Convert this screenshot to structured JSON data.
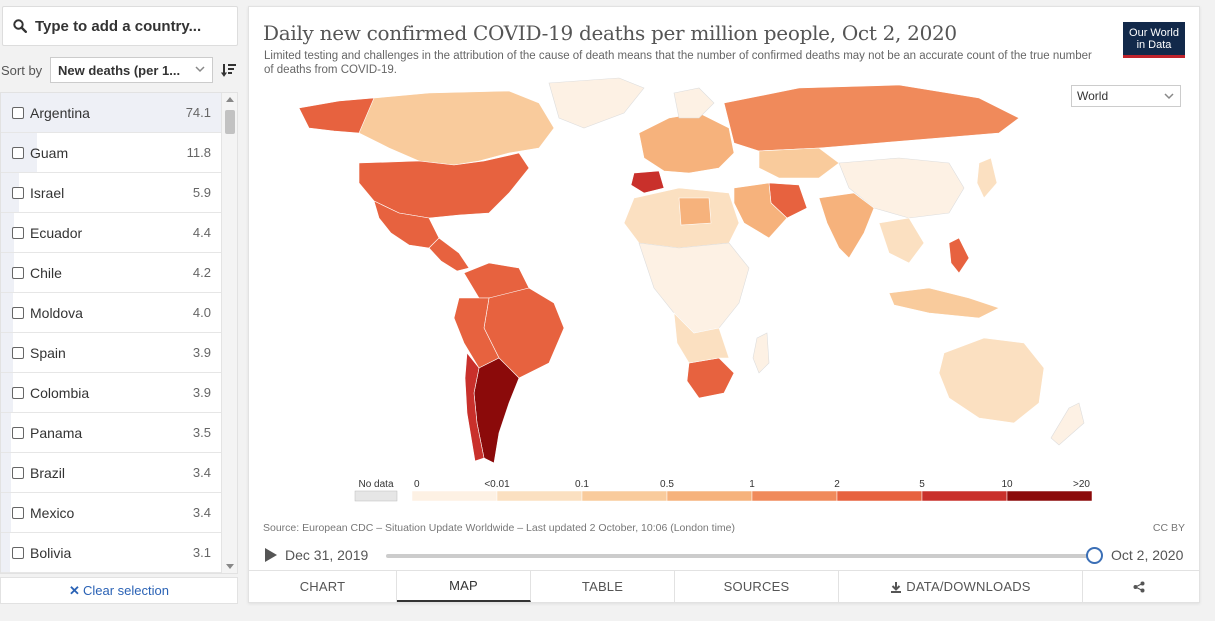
{
  "search": {
    "placeholder": "Type to add a country..."
  },
  "sort": {
    "label": "Sort by",
    "selected": "New deaths (per 1..."
  },
  "countries": [
    {
      "name": "Argentina",
      "value": "74.1",
      "fraction": 1.0
    },
    {
      "name": "Guam",
      "value": "11.8",
      "fraction": 0.16
    },
    {
      "name": "Israel",
      "value": "5.9",
      "fraction": 0.08
    },
    {
      "name": "Ecuador",
      "value": "4.4",
      "fraction": 0.06
    },
    {
      "name": "Chile",
      "value": "4.2",
      "fraction": 0.057
    },
    {
      "name": "Moldova",
      "value": "4.0",
      "fraction": 0.054
    },
    {
      "name": "Spain",
      "value": "3.9",
      "fraction": 0.053
    },
    {
      "name": "Colombia",
      "value": "3.9",
      "fraction": 0.053
    },
    {
      "name": "Panama",
      "value": "3.5",
      "fraction": 0.047
    },
    {
      "name": "Brazil",
      "value": "3.4",
      "fraction": 0.046
    },
    {
      "name": "Mexico",
      "value": "3.4",
      "fraction": 0.046
    },
    {
      "name": "Bolivia",
      "value": "3.1",
      "fraction": 0.042
    }
  ],
  "clear_selection": "Clear selection",
  "chart": {
    "title": "Daily new confirmed COVID-19 deaths per million people, Oct 2, 2020",
    "subtitle": "Limited testing and challenges in the attribution of the cause of death means that the number of confirmed deaths may not be an accurate count of the true number of deaths from COVID-19.",
    "logo_line1": "Our World",
    "logo_line2": "in Data",
    "region": "World",
    "source": "Source: European CDC – Situation Update Worldwide – Last updated 2 October, 10:06 (London time)",
    "license": "CC BY"
  },
  "legend": {
    "nodata_label": "No data",
    "nodata_color": "#e6e6e6",
    "ticks": [
      "0",
      "<0.01",
      "0.1",
      "0.5",
      "1",
      "2",
      "5",
      "10",
      ">20"
    ],
    "colors": [
      "#fdf1e4",
      "#fbe0c1",
      "#f9cb9c",
      "#f6b27c",
      "#f08a5b",
      "#e7623f",
      "#c9302b",
      "#8b0a0a"
    ]
  },
  "timeline": {
    "start": "Dec 31, 2019",
    "end": "Oct 2, 2020",
    "progress": 1.0
  },
  "tabs": [
    {
      "label": "CHART",
      "active": false
    },
    {
      "label": "MAP",
      "active": true
    },
    {
      "label": "TABLE",
      "active": false
    },
    {
      "label": "SOURCES",
      "active": false
    },
    {
      "label": "DATA/DOWNLOADS",
      "active": false
    }
  ],
  "chart_data": {
    "type": "choropleth-map",
    "title": "Daily new confirmed COVID-19 deaths per million people, Oct 2, 2020",
    "bins": [
      "0",
      "<0.01",
      "0.1",
      "0.5",
      "1",
      "2",
      "5",
      "10",
      ">20"
    ],
    "ranked_values": [
      {
        "country": "Argentina",
        "value": 74.1
      },
      {
        "country": "Guam",
        "value": 11.8
      },
      {
        "country": "Israel",
        "value": 5.9
      },
      {
        "country": "Ecuador",
        "value": 4.4
      },
      {
        "country": "Chile",
        "value": 4.2
      },
      {
        "country": "Moldova",
        "value": 4.0
      },
      {
        "country": "Spain",
        "value": 3.9
      },
      {
        "country": "Colombia",
        "value": 3.9
      },
      {
        "country": "Panama",
        "value": 3.5
      },
      {
        "country": "Brazil",
        "value": 3.4
      },
      {
        "country": "Mexico",
        "value": 3.4
      },
      {
        "country": "Bolivia",
        "value": 3.1
      }
    ]
  }
}
